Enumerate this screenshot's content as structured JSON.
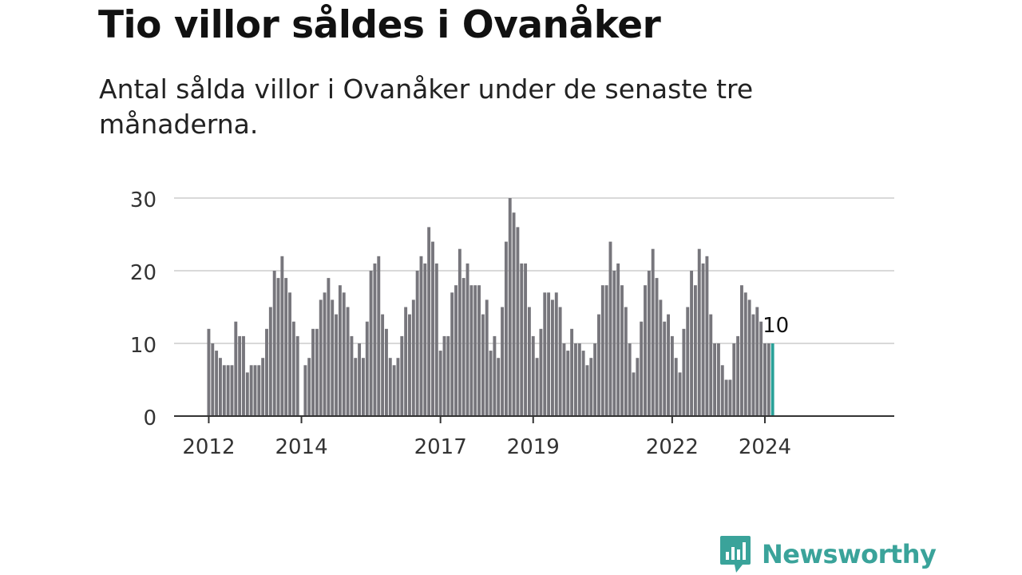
{
  "header": {
    "title": "Tio villor såldes i Ovanåker",
    "subtitle": "Antal sålda villor i Ovanåker under de senaste tre månaderna."
  },
  "brand": {
    "name": "Newsworthy",
    "icon": "newsworthy-logo-icon"
  },
  "colors": {
    "bar": "#77767c",
    "highlight": "#2aa198",
    "grid": "#d9d9d9",
    "axis": "#333333",
    "brand": "#3aa39a"
  },
  "chart_data": {
    "type": "bar",
    "title": "Tio villor såldes i Ovanåker",
    "subtitle": "Antal sålda villor i Ovanåker under de senaste tre månaderna.",
    "xlabel": "",
    "ylabel": "",
    "ylim": [
      0,
      30
    ],
    "yticks": [
      0,
      10,
      20,
      30
    ],
    "grid": true,
    "start": "2012-01",
    "x_tick_labels": [
      "2012",
      "2014",
      "2017",
      "2019",
      "2022",
      "2024"
    ],
    "highlight_label": "10",
    "values": [
      12,
      10,
      9,
      8,
      7,
      7,
      7,
      13,
      11,
      11,
      6,
      7,
      7,
      7,
      8,
      12,
      15,
      20,
      19,
      22,
      19,
      17,
      13,
      11,
      0,
      7,
      8,
      12,
      12,
      16,
      17,
      19,
      16,
      14,
      18,
      17,
      15,
      11,
      8,
      10,
      8,
      13,
      20,
      21,
      22,
      14,
      12,
      8,
      7,
      8,
      11,
      15,
      14,
      16,
      20,
      22,
      21,
      26,
      24,
      21,
      9,
      11,
      11,
      17,
      18,
      23,
      19,
      21,
      18,
      18,
      18,
      14,
      16,
      9,
      11,
      8,
      15,
      24,
      30,
      28,
      26,
      21,
      21,
      15,
      11,
      8,
      12,
      17,
      17,
      16,
      17,
      15,
      10,
      9,
      12,
      10,
      10,
      9,
      7,
      8,
      10,
      14,
      18,
      18,
      24,
      20,
      21,
      18,
      15,
      10,
      6,
      8,
      13,
      18,
      20,
      23,
      19,
      16,
      13,
      14,
      11,
      8,
      6,
      12,
      15,
      20,
      18,
      23,
      21,
      22,
      14,
      10,
      10,
      7,
      5,
      5,
      10,
      11,
      18,
      17,
      16,
      14,
      15,
      13,
      10,
      10,
      10
    ]
  }
}
